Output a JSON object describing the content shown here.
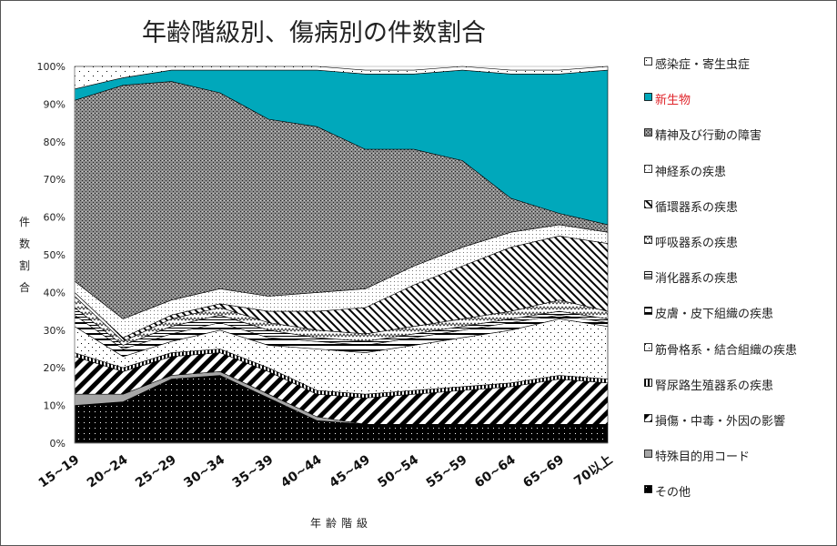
{
  "chart_data": {
    "type": "area",
    "title": "年齢階級別、傷病別の件数割合",
    "xlabel": "年齢階級",
    "ylabel": "件数割合",
    "ylim": [
      0,
      100
    ],
    "y_ticks": [
      "0%",
      "10%",
      "20%",
      "30%",
      "40%",
      "50%",
      "60%",
      "70%",
      "80%",
      "90%",
      "100%"
    ],
    "categories": [
      "15~19",
      "20~24",
      "25~29",
      "30~34",
      "35~39",
      "40~44",
      "45~49",
      "50~54",
      "55~59",
      "60~64",
      "65~69",
      "70以上"
    ],
    "stack_order": "bottom-to-top",
    "series": [
      {
        "name": "その他",
        "pattern": "dots-on-black",
        "values": [
          10,
          11,
          17,
          18,
          12,
          6,
          5,
          5,
          5,
          5,
          5,
          5
        ]
      },
      {
        "name": "特殊目的用コード",
        "pattern": "solid-gray",
        "values": [
          3,
          2,
          1,
          1,
          1,
          1,
          0,
          0,
          0,
          0,
          0,
          0
        ]
      },
      {
        "name": "損傷・中毒・外因の影響",
        "pattern": "wide-diagonal-stripes",
        "values": [
          10,
          6,
          5,
          5,
          6,
          6,
          7,
          8,
          9,
          10,
          12,
          11
        ]
      },
      {
        "name": "腎尿路生殖器系の疾患",
        "pattern": "vertical-stripes",
        "values": [
          1,
          1,
          1,
          1,
          1,
          1,
          1,
          1,
          1,
          1,
          1,
          1
        ]
      },
      {
        "name": "筋骨格系・結合組織の疾患",
        "pattern": "sparse-dots",
        "values": [
          7,
          3,
          3,
          5,
          6,
          11,
          11,
          12,
          13,
          14,
          15,
          14
        ]
      },
      {
        "name": "皮膚・皮下組織の疾患",
        "pattern": "horizontal-stripes",
        "values": [
          3,
          2,
          2,
          2,
          2,
          2,
          2,
          2,
          2,
          2,
          1,
          1
        ]
      },
      {
        "name": "消化器系の疾患",
        "pattern": "dense-horizontal-lines",
        "values": [
          2,
          1,
          2,
          2,
          2,
          1,
          1,
          1,
          1,
          1,
          1,
          1
        ]
      },
      {
        "name": "呼吸器系の疾患",
        "pattern": "zigzag",
        "values": [
          3,
          1,
          2,
          2,
          2,
          2,
          2,
          2,
          2,
          2,
          3,
          2
        ]
      },
      {
        "name": "循環器系の疾患",
        "pattern": "diagonal-hatch",
        "values": [
          1,
          1,
          1,
          1,
          3,
          5,
          7,
          11,
          14,
          17,
          17,
          18
        ]
      },
      {
        "name": "神経系の疾患",
        "pattern": "light-dots",
        "values": [
          3,
          5,
          4,
          4,
          4,
          5,
          5,
          5,
          5,
          4,
          3,
          3
        ]
      },
      {
        "name": "精神及び行動の障害",
        "pattern": "crosshatch-gray",
        "values": [
          48,
          62,
          58,
          52,
          47,
          44,
          37,
          31,
          23,
          9,
          3,
          2
        ]
      },
      {
        "name": "新生物",
        "pattern": "solid-teal",
        "color": "#00a8bb",
        "values": [
          3,
          2,
          3,
          6,
          13,
          15,
          20,
          20,
          24,
          33,
          37,
          41
        ]
      },
      {
        "name": "感染症・寄生虫症",
        "pattern": "scattered-dots",
        "values": [
          6,
          3,
          1,
          1,
          1,
          1,
          1,
          1,
          1,
          1,
          1,
          1
        ]
      }
    ]
  },
  "legend": {
    "items": [
      {
        "label": "感染症・寄生虫症",
        "pattern": "scattered-dots"
      },
      {
        "label": "新生物",
        "pattern": "solid-teal",
        "color": "#e0252b"
      },
      {
        "label": "精神及び行動の障害",
        "pattern": "crosshatch-gray"
      },
      {
        "label": "神経系の疾患",
        "pattern": "light-dots"
      },
      {
        "label": "循環器系の疾患",
        "pattern": "diagonal-hatch"
      },
      {
        "label": "呼吸器系の疾患",
        "pattern": "zigzag"
      },
      {
        "label": "消化器系の疾患",
        "pattern": "dense-horizontal-lines"
      },
      {
        "label": "皮膚・皮下組織の疾患",
        "pattern": "horizontal-stripes"
      },
      {
        "label": "筋骨格系・結合組織の疾患",
        "pattern": "sparse-dots"
      },
      {
        "label": "腎尿路生殖器系の疾患",
        "pattern": "vertical-stripes"
      },
      {
        "label": "損傷・中毒・外因の影響",
        "pattern": "wide-diagonal-stripes"
      },
      {
        "label": "特殊目的用コード",
        "pattern": "solid-gray"
      },
      {
        "label": "その他",
        "pattern": "dots-on-black"
      }
    ]
  },
  "colors": {
    "teal": "#00a8bb",
    "legend_highlight": "#e0252b",
    "crosshatch": "#808080"
  }
}
